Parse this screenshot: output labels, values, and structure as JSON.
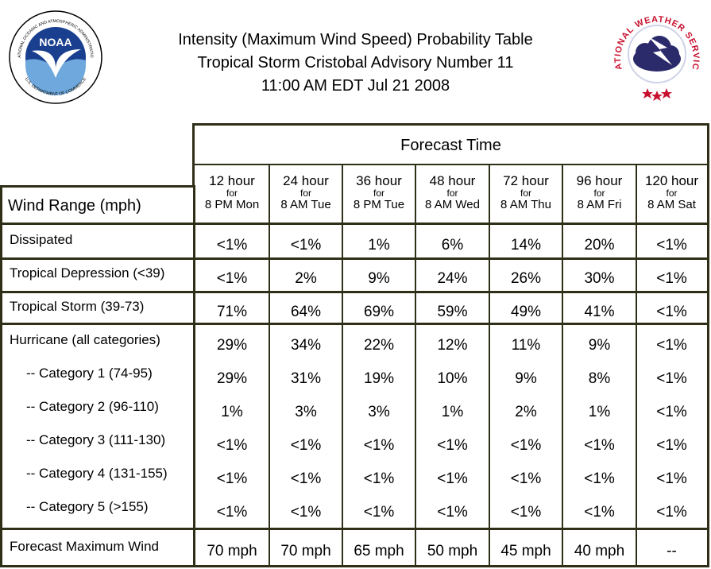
{
  "header": {
    "title_line1": "Intensity (Maximum Wind Speed) Probability Table",
    "title_line2": "Tropical Storm Cristobal Advisory Number 11",
    "title_line3": "11:00 AM EDT Jul 21 2008"
  },
  "logos": {
    "noaa_text": "NOAA",
    "noaa_ring": "NATIONAL OCEANIC AND ATMOSPHERIC ADMINISTRATION",
    "noaa_ring_bottom": "U.S. DEPARTMENT OF COMMERCE",
    "nws_ring": "NATIONAL WEATHER SERVICE"
  },
  "table": {
    "forecast_time_label": "Forecast Time",
    "wind_range_label": "Wind Range (mph)",
    "columns": [
      {
        "hours": "12 hour",
        "for": "for",
        "when": "8 PM Mon"
      },
      {
        "hours": "24 hour",
        "for": "for",
        "when": "8 AM Tue"
      },
      {
        "hours": "36 hour",
        "for": "for",
        "when": "8 PM Tue"
      },
      {
        "hours": "48 hour",
        "for": "for",
        "when": "8 AM Wed"
      },
      {
        "hours": "72 hour",
        "for": "for",
        "when": "8 AM Thu"
      },
      {
        "hours": "96 hour",
        "for": "for",
        "when": "8 AM Fri"
      },
      {
        "hours": "120 hour",
        "for": "for",
        "when": "8 AM Sat"
      }
    ],
    "rows": [
      {
        "label": "Dissipated",
        "values": [
          "<1%",
          "<1%",
          "1%",
          "6%",
          "14%",
          "20%",
          "<1%"
        ]
      },
      {
        "label": "Tropical Depression (<39)",
        "values": [
          "<1%",
          "2%",
          "9%",
          "24%",
          "26%",
          "30%",
          "<1%"
        ]
      },
      {
        "label": "Tropical Storm (39-73)",
        "values": [
          "71%",
          "64%",
          "69%",
          "59%",
          "49%",
          "41%",
          "<1%"
        ]
      },
      {
        "label": "Hurricane (all categories)",
        "values": [
          "29%",
          "34%",
          "22%",
          "12%",
          "11%",
          "9%",
          "<1%"
        ]
      },
      {
        "label": "-- Category 1 (74-95)",
        "values": [
          "29%",
          "31%",
          "19%",
          "10%",
          "9%",
          "8%",
          "<1%"
        ]
      },
      {
        "label": "-- Category 2 (96-110)",
        "values": [
          "1%",
          "3%",
          "3%",
          "1%",
          "2%",
          "1%",
          "<1%"
        ]
      },
      {
        "label": "-- Category 3 (111-130)",
        "values": [
          "<1%",
          "<1%",
          "<1%",
          "<1%",
          "<1%",
          "<1%",
          "<1%"
        ]
      },
      {
        "label": "-- Category 4 (131-155)",
        "values": [
          "<1%",
          "<1%",
          "<1%",
          "<1%",
          "<1%",
          "<1%",
          "<1%"
        ]
      },
      {
        "label": "-- Category 5 (>155)",
        "values": [
          "<1%",
          "<1%",
          "<1%",
          "<1%",
          "<1%",
          "<1%",
          "<1%"
        ]
      },
      {
        "label": "Forecast Maximum Wind",
        "values": [
          "70 mph",
          "70 mph",
          "65 mph",
          "50 mph",
          "45 mph",
          "40 mph",
          "--"
        ]
      }
    ]
  },
  "colors": {
    "border": "#2f2f17",
    "noaa_blue": "#1a3f8f",
    "nws_red": "#c8102e",
    "nws_cloud": "#2b2a6b"
  }
}
